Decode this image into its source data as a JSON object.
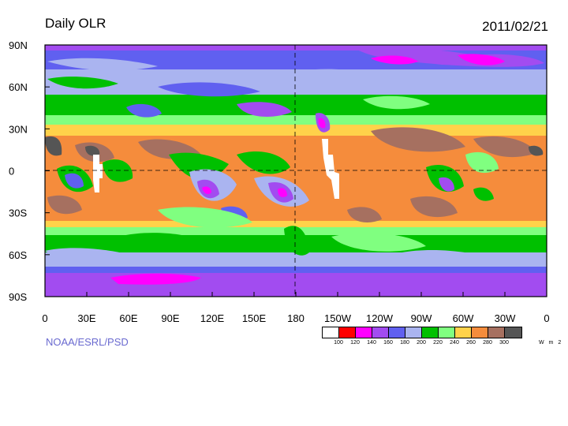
{
  "header": {
    "title": "Daily OLR",
    "date": "2011/02/21"
  },
  "credit": "NOAA/ESRL/PSD",
  "map": {
    "lat_labels": [
      "90N",
      "60N",
      "30N",
      "0",
      "30S",
      "60S",
      "90S"
    ],
    "lon_labels": [
      "0",
      "30E",
      "60E",
      "90E",
      "120E",
      "150E",
      "180",
      "150W",
      "120W",
      "90W",
      "60W",
      "30W",
      "0"
    ]
  },
  "legend": {
    "colors": [
      "#ffffff",
      "#ff0000",
      "#ff00ff",
      "#a24cf0",
      "#6060f0",
      "#aab4f0",
      "#00c000",
      "#80ff80",
      "#ffd24a",
      "#f58c3c",
      "#a67060",
      "#555555"
    ],
    "labels": [
      "100",
      "120",
      "140",
      "160",
      "180",
      "200",
      "220",
      "240",
      "260",
      "280",
      "300"
    ],
    "units": "W m 2"
  }
}
